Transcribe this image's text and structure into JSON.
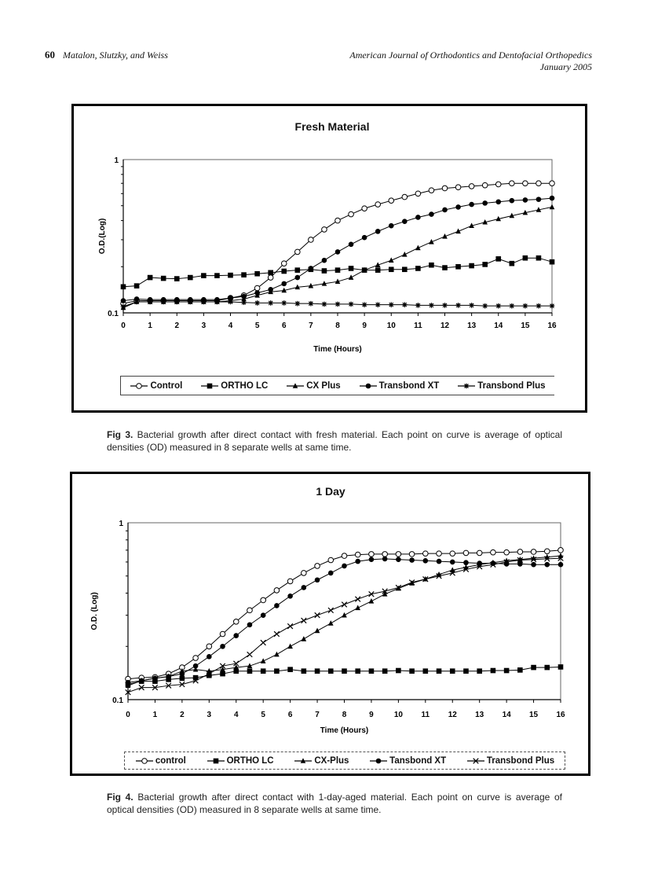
{
  "header": {
    "page_number": "60",
    "authors": "Matalon, Slutzky, and Weiss",
    "journal": "American Journal of Orthodontics and Dentofacial Orthopedics",
    "date": "January 2005"
  },
  "figures": [
    {
      "label": "Fig 3.",
      "caption": " Bacterial growth after direct contact with fresh material. Each point on curve is average of optical densities (OD) measured in 8 separate wells at same time."
    },
    {
      "label": "Fig 4.",
      "caption": " Bacterial growth after direct contact with 1-day-aged material. Each point on curve is average of optical densities (OD) measured in 8 separate wells at same time."
    }
  ],
  "chart_data": [
    {
      "type": "line",
      "title": "Fresh Material",
      "xlabel": "Time (Hours)",
      "ylabel": "O.D.(Log)",
      "yscale": "log",
      "ylim": [
        0.1,
        1
      ],
      "ytick_labels": [
        "1",
        "0.1"
      ],
      "xlim": [
        0,
        16
      ],
      "xtick_labels": [
        "0",
        "1",
        "2",
        "3",
        "4",
        "5",
        "6",
        "7",
        "8",
        "9",
        "10",
        "11",
        "12",
        "13",
        "14",
        "15",
        "16"
      ],
      "x": [
        0,
        0.5,
        1,
        1.5,
        2,
        2.5,
        3,
        3.5,
        4,
        4.5,
        5,
        5.5,
        6,
        6.5,
        7,
        7.5,
        8,
        8.5,
        9,
        9.5,
        10,
        10.5,
        11,
        11.5,
        12,
        12.5,
        13,
        13.5,
        14,
        14.5,
        15,
        15.5,
        16
      ],
      "legend_position": "bottom",
      "series": [
        {
          "name": "Control",
          "marker": "open-circle",
          "values": [
            0.115,
            0.12,
            0.12,
            0.12,
            0.12,
            0.12,
            0.12,
            0.12,
            0.125,
            0.13,
            0.145,
            0.17,
            0.21,
            0.25,
            0.3,
            0.35,
            0.4,
            0.44,
            0.48,
            0.51,
            0.54,
            0.57,
            0.6,
            0.63,
            0.65,
            0.66,
            0.67,
            0.68,
            0.69,
            0.7,
            0.7,
            0.7,
            0.7
          ]
        },
        {
          "name": "ORTHO LC",
          "marker": "square",
          "values": [
            0.148,
            0.15,
            0.17,
            0.168,
            0.167,
            0.17,
            0.175,
            0.175,
            0.176,
            0.177,
            0.18,
            0.183,
            0.187,
            0.19,
            0.192,
            0.188,
            0.19,
            0.195,
            0.19,
            0.19,
            0.192,
            0.192,
            0.195,
            0.205,
            0.197,
            0.2,
            0.203,
            0.207,
            0.225,
            0.21,
            0.228,
            0.228,
            0.215
          ]
        },
        {
          "name": "CX Plus",
          "marker": "triangle",
          "values": [
            0.108,
            0.118,
            0.118,
            0.118,
            0.118,
            0.118,
            0.118,
            0.118,
            0.12,
            0.123,
            0.13,
            0.137,
            0.14,
            0.147,
            0.15,
            0.155,
            0.16,
            0.17,
            0.19,
            0.205,
            0.22,
            0.24,
            0.265,
            0.29,
            0.315,
            0.34,
            0.37,
            0.39,
            0.41,
            0.43,
            0.45,
            0.47,
            0.49
          ]
        },
        {
          "name": "Transbond XT",
          "marker": "filled-circle",
          "values": [
            0.12,
            0.123,
            0.122,
            0.122,
            0.122,
            0.122,
            0.122,
            0.122,
            0.125,
            0.128,
            0.135,
            0.142,
            0.155,
            0.17,
            0.195,
            0.22,
            0.25,
            0.28,
            0.31,
            0.34,
            0.37,
            0.395,
            0.42,
            0.44,
            0.47,
            0.49,
            0.51,
            0.52,
            0.53,
            0.54,
            0.545,
            0.55,
            0.56
          ]
        },
        {
          "name": "Transbond Plus",
          "marker": "asterisk",
          "values": [
            0.11,
            0.118,
            0.118,
            0.118,
            0.118,
            0.118,
            0.118,
            0.118,
            0.118,
            0.117,
            0.116,
            0.116,
            0.116,
            0.115,
            0.115,
            0.114,
            0.114,
            0.114,
            0.113,
            0.113,
            0.113,
            0.113,
            0.112,
            0.112,
            0.112,
            0.112,
            0.112,
            0.111,
            0.111,
            0.111,
            0.111,
            0.111,
            0.111
          ]
        }
      ]
    },
    {
      "type": "line",
      "title": "1 Day",
      "xlabel": "Time (Hours)",
      "ylabel": "O.D. (Log)",
      "yscale": "log",
      "ylim": [
        0.1,
        1
      ],
      "ytick_labels": [
        "1",
        "0.1"
      ],
      "xlim": [
        0,
        16
      ],
      "xtick_labels": [
        "0",
        "1",
        "2",
        "3",
        "4",
        "5",
        "6",
        "7",
        "8",
        "9",
        "10",
        "11",
        "12",
        "13",
        "14",
        "15",
        "16"
      ],
      "x": [
        0,
        0.5,
        1,
        1.5,
        2,
        2.5,
        3,
        3.5,
        4,
        4.5,
        5,
        5.5,
        6,
        6.5,
        7,
        7.5,
        8,
        8.5,
        9,
        9.5,
        10,
        10.5,
        11,
        11.5,
        12,
        12.5,
        13,
        13.5,
        14,
        14.5,
        15,
        15.5,
        16
      ],
      "legend_position": "bottom",
      "series": [
        {
          "name": "control",
          "marker": "open-circle",
          "values": [
            0.131,
            0.133,
            0.134,
            0.14,
            0.152,
            0.172,
            0.2,
            0.235,
            0.276,
            0.32,
            0.365,
            0.415,
            0.467,
            0.52,
            0.57,
            0.615,
            0.65,
            0.66,
            0.665,
            0.665,
            0.665,
            0.665,
            0.67,
            0.67,
            0.67,
            0.675,
            0.675,
            0.68,
            0.68,
            0.685,
            0.685,
            0.69,
            0.7
          ]
        },
        {
          "name": "ORTHO LC",
          "marker": "square",
          "values": [
            0.122,
            0.127,
            0.127,
            0.13,
            0.132,
            0.133,
            0.137,
            0.14,
            0.145,
            0.145,
            0.145,
            0.145,
            0.148,
            0.145,
            0.145,
            0.145,
            0.145,
            0.145,
            0.145,
            0.145,
            0.146,
            0.145,
            0.145,
            0.145,
            0.145,
            0.145,
            0.145,
            0.146,
            0.146,
            0.147,
            0.152,
            0.152,
            0.153
          ]
        },
        {
          "name": "CX-Plus",
          "marker": "triangle",
          "values": [
            0.12,
            0.128,
            0.132,
            0.135,
            0.145,
            0.148,
            0.145,
            0.148,
            0.152,
            0.155,
            0.165,
            0.18,
            0.2,
            0.22,
            0.245,
            0.27,
            0.3,
            0.33,
            0.36,
            0.395,
            0.425,
            0.455,
            0.48,
            0.51,
            0.54,
            0.56,
            0.58,
            0.595,
            0.61,
            0.62,
            0.63,
            0.64,
            0.65
          ]
        },
        {
          "name": "Tansbond XT",
          "marker": "filled-circle",
          "values": [
            0.125,
            0.128,
            0.132,
            0.135,
            0.14,
            0.155,
            0.175,
            0.2,
            0.23,
            0.265,
            0.3,
            0.34,
            0.385,
            0.43,
            0.475,
            0.52,
            0.57,
            0.605,
            0.62,
            0.625,
            0.62,
            0.615,
            0.61,
            0.605,
            0.6,
            0.595,
            0.59,
            0.59,
            0.585,
            0.585,
            0.58,
            0.58,
            0.58
          ]
        },
        {
          "name": "Transbond Plus",
          "marker": "x",
          "values": [
            0.11,
            0.117,
            0.117,
            0.12,
            0.122,
            0.128,
            0.14,
            0.155,
            0.16,
            0.18,
            0.21,
            0.235,
            0.26,
            0.28,
            0.3,
            0.32,
            0.345,
            0.37,
            0.395,
            0.41,
            0.43,
            0.46,
            0.48,
            0.5,
            0.52,
            0.545,
            0.565,
            0.58,
            0.6,
            0.615,
            0.62,
            0.625,
            0.63
          ]
        }
      ]
    }
  ]
}
